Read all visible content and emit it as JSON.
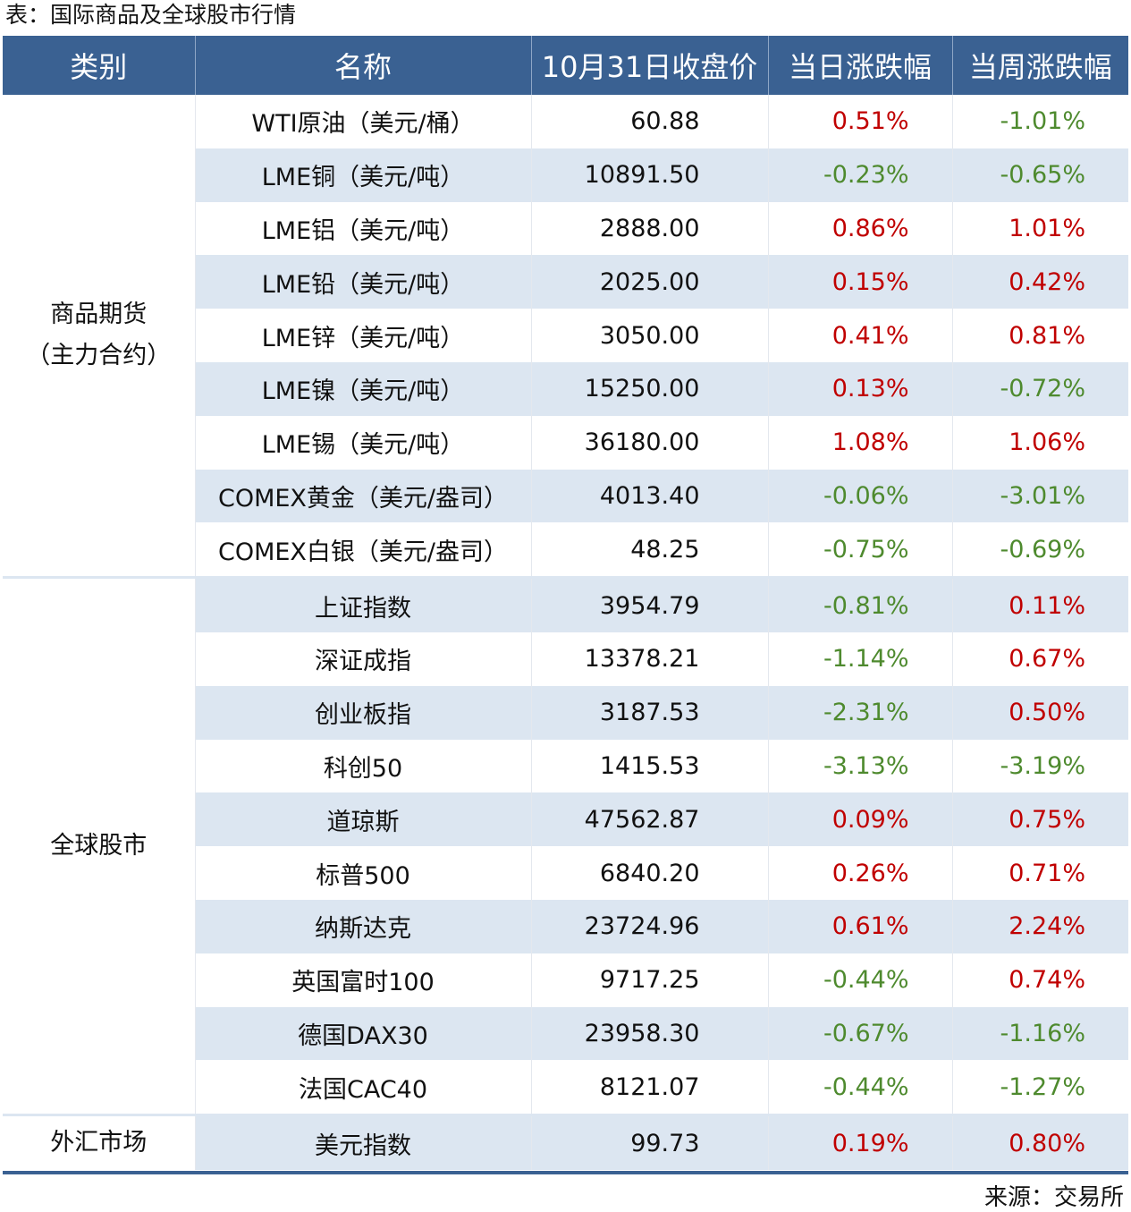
{
  "title": "表：国际商品及全球股市行情",
  "headers": [
    "类别",
    "名称",
    "10月31日收盘价",
    "当日涨跌幅",
    "当周涨跌幅"
  ],
  "colors": {
    "header": "#3a6192",
    "stripe": "#dce6f1",
    "up": "#c00000",
    "down": "#4e8a2e"
  },
  "groups": [
    {
      "category": "商品期货（主力合约）",
      "category_lines": [
        "商品期货",
        "（主力合约）"
      ],
      "rows": [
        {
          "name": "WTI原油（美元/桶）",
          "close": "60.88",
          "day": "0.51%",
          "week": "-1.01%"
        },
        {
          "name": "LME铜（美元/吨）",
          "close": "10891.50",
          "day": "-0.23%",
          "week": "-0.65%"
        },
        {
          "name": "LME铝（美元/吨）",
          "close": "2888.00",
          "day": "0.86%",
          "week": "1.01%"
        },
        {
          "name": "LME铅（美元/吨）",
          "close": "2025.00",
          "day": "0.15%",
          "week": "0.42%"
        },
        {
          "name": "LME锌（美元/吨）",
          "close": "3050.00",
          "day": "0.41%",
          "week": "0.81%"
        },
        {
          "name": "LME镍（美元/吨）",
          "close": "15250.00",
          "day": "0.13%",
          "week": "-0.72%"
        },
        {
          "name": "LME锡（美元/吨）",
          "close": "36180.00",
          "day": "1.08%",
          "week": "1.06%"
        },
        {
          "name": "COMEX黄金（美元/盎司）",
          "close": "4013.40",
          "day": "-0.06%",
          "week": "-3.01%"
        },
        {
          "name": "COMEX白银（美元/盎司）",
          "close": "48.25",
          "day": "-0.75%",
          "week": "-0.69%"
        }
      ]
    },
    {
      "category": "全球股市",
      "category_lines": [
        "全球股市"
      ],
      "rows": [
        {
          "name": "上证指数",
          "close": "3954.79",
          "day": "-0.81%",
          "week": "0.11%"
        },
        {
          "name": "深证成指",
          "close": "13378.21",
          "day": "-1.14%",
          "week": "0.67%"
        },
        {
          "name": "创业板指",
          "close": "3187.53",
          "day": "-2.31%",
          "week": "0.50%"
        },
        {
          "name": "科创50",
          "close": "1415.53",
          "day": "-3.13%",
          "week": "-3.19%"
        },
        {
          "name": "道琼斯",
          "close": "47562.87",
          "day": "0.09%",
          "week": "0.75%"
        },
        {
          "name": "标普500",
          "close": "6840.20",
          "day": "0.26%",
          "week": "0.71%"
        },
        {
          "name": "纳斯达克",
          "close": "23724.96",
          "day": "0.61%",
          "week": "2.24%"
        },
        {
          "name": "英国富时100",
          "close": "9717.25",
          "day": "-0.44%",
          "week": "0.74%"
        },
        {
          "name": "德国DAX30",
          "close": "23958.30",
          "day": "-0.67%",
          "week": "-1.16%"
        },
        {
          "name": "法国CAC40",
          "close": "8121.07",
          "day": "-0.44%",
          "week": "-1.27%"
        }
      ]
    },
    {
      "category": "外汇市场",
      "category_lines": [
        "外汇市场"
      ],
      "rows": [
        {
          "name": "美元指数",
          "close": "99.73",
          "day": "0.19%",
          "week": "0.80%"
        }
      ]
    }
  ],
  "source": "来源：交易所"
}
